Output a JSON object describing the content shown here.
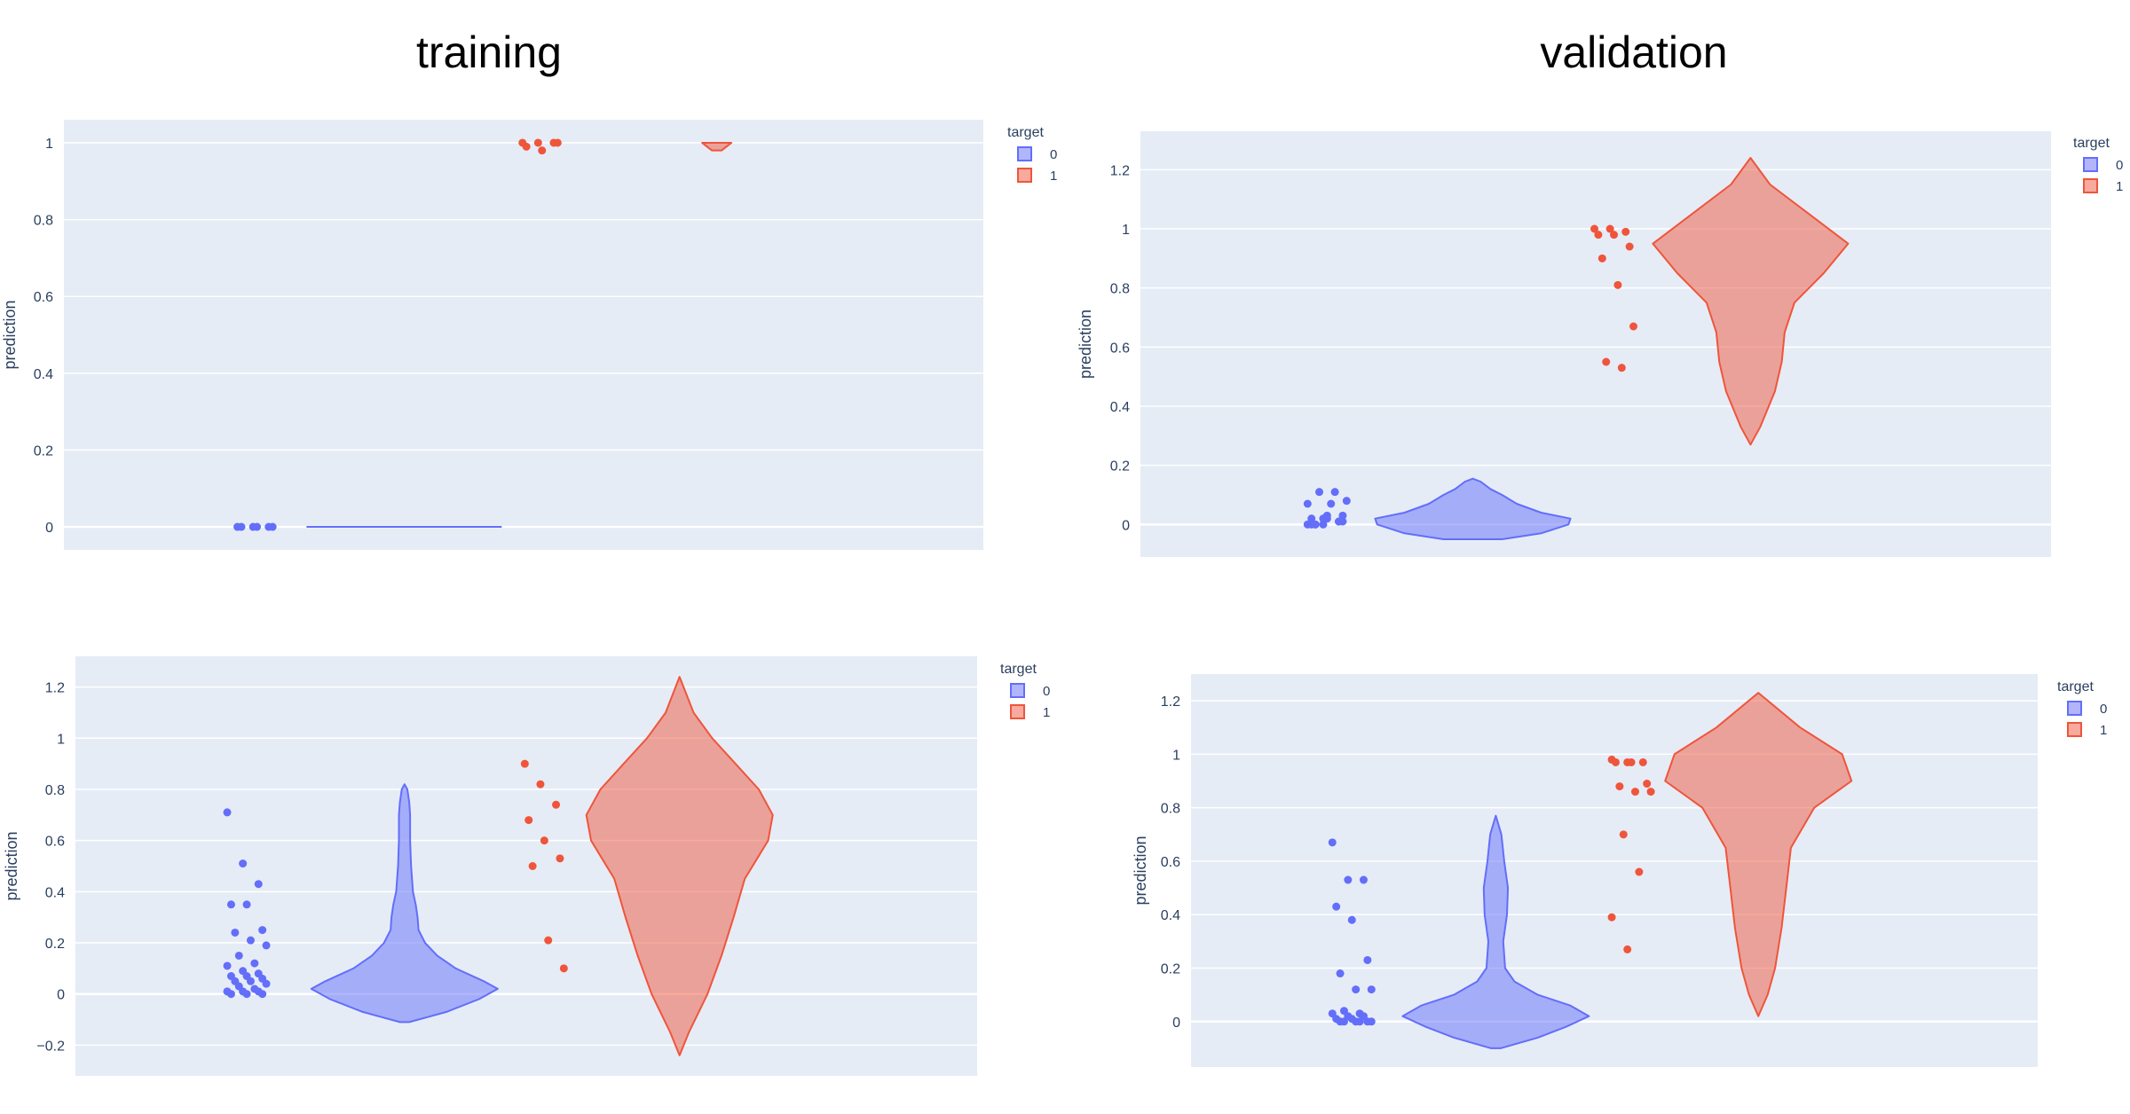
{
  "column_titles": {
    "training": "training",
    "validation": "validation"
  },
  "legend_title": "target",
  "colors": {
    "target_0": "#636efa",
    "target_1": "#ef553b",
    "plot_bg": "#e5ecf6",
    "grid": "#ffffff",
    "text": "#2a3f5f"
  },
  "chart_data": [
    {
      "type": "violin",
      "panel": "training-top",
      "ylabel": "prediction",
      "ylim": [
        -0.06,
        1.06
      ],
      "yticks": [
        0,
        0.2,
        0.4,
        0.6,
        0.8,
        1
      ],
      "ytick_labels": [
        "0",
        "0.2",
        "0.4",
        "0.6",
        "0.8",
        "1"
      ],
      "legend": [
        "0",
        "1"
      ],
      "series": [
        {
          "name": "0",
          "points": [
            0,
            0,
            0,
            0,
            0,
            0
          ],
          "violin": {
            "y": [
              0,
              0
            ],
            "w": [
              1,
              1
            ]
          }
        },
        {
          "name": "1",
          "points": [
            1,
            1,
            1,
            0.99,
            0.98,
            1
          ],
          "violin": {
            "y": [
              0.98,
              0.99,
              1.0
            ],
            "w": [
              0.05,
              0.1,
              0.15
            ]
          }
        }
      ]
    },
    {
      "type": "violin",
      "panel": "validation-top",
      "ylabel": "prediction",
      "ylim": [
        -0.11,
        1.33
      ],
      "yticks": [
        0,
        0.2,
        0.4,
        0.6,
        0.8,
        1,
        1.2
      ],
      "ytick_labels": [
        "0",
        "0.2",
        "0.4",
        "0.6",
        "0.8",
        "1",
        "1.2"
      ],
      "legend": [
        "0",
        "1"
      ],
      "series": [
        {
          "name": "0",
          "points": [
            0,
            0,
            0.01,
            0.02,
            0.03,
            0.01,
            0,
            0.07,
            0.08,
            0.11,
            0.11,
            0.07,
            0.02,
            0.01,
            0,
            0.02,
            0.03,
            0
          ],
          "violin": {
            "y": [
              -0.05,
              -0.03,
              0,
              0.02,
              0.04,
              0.07,
              0.1,
              0.12,
              0.145,
              0.155
            ],
            "w": [
              0.3,
              0.7,
              0.98,
              1.0,
              0.7,
              0.45,
              0.3,
              0.18,
              0.08,
              0
            ]
          }
        },
        {
          "name": "1",
          "points": [
            1,
            1,
            0.99,
            0.98,
            0.98,
            0.94,
            0.9,
            0.81,
            0.67,
            0.55,
            0.53
          ],
          "violin": {
            "y": [
              0.27,
              0.33,
              0.45,
              0.55,
              0.65,
              0.75,
              0.85,
              0.95,
              1.05,
              1.15,
              1.24
            ],
            "w": [
              0,
              0.1,
              0.25,
              0.32,
              0.35,
              0.45,
              0.75,
              1.0,
              0.6,
              0.2,
              0
            ]
          }
        }
      ]
    },
    {
      "type": "violin",
      "panel": "training-bottom",
      "ylabel": "prediction",
      "ylim": [
        -0.32,
        1.32
      ],
      "yticks": [
        -0.2,
        0,
        0.2,
        0.4,
        0.6,
        0.8,
        1,
        1.2
      ],
      "ytick_labels": [
        "−0.2",
        "0",
        "0.2",
        "0.4",
        "0.6",
        "0.8",
        "1",
        "1.2"
      ],
      "legend": [
        "0",
        "1"
      ],
      "series": [
        {
          "name": "0",
          "points": [
            0.71,
            0.51,
            0.43,
            0.35,
            0.35,
            0.25,
            0.24,
            0.21,
            0.19,
            0.15,
            0.12,
            0.11,
            0.09,
            0.08,
            0.07,
            0.07,
            0.06,
            0.05,
            0.05,
            0.04,
            0.03,
            0.02,
            0.01,
            0.01,
            0.01,
            0,
            0,
            0
          ],
          "violin": {
            "y": [
              -0.11,
              -0.07,
              -0.02,
              0.02,
              0.05,
              0.1,
              0.15,
              0.2,
              0.25,
              0.3,
              0.35,
              0.4,
              0.5,
              0.6,
              0.7,
              0.75,
              0.8,
              0.82
            ],
            "w": [
              0.05,
              0.45,
              0.8,
              1.0,
              0.85,
              0.55,
              0.35,
              0.22,
              0.15,
              0.14,
              0.12,
              0.09,
              0.07,
              0.06,
              0.06,
              0.05,
              0.03,
              0
            ]
          }
        },
        {
          "name": "1",
          "points": [
            0.9,
            0.82,
            0.74,
            0.68,
            0.6,
            0.53,
            0.5,
            0.21,
            0.1
          ],
          "violin": {
            "y": [
              -0.24,
              -0.15,
              0,
              0.15,
              0.3,
              0.45,
              0.6,
              0.7,
              0.8,
              0.9,
              1.0,
              1.1,
              1.24
            ],
            "w": [
              0,
              0.1,
              0.3,
              0.45,
              0.58,
              0.7,
              0.95,
              1.0,
              0.85,
              0.6,
              0.35,
              0.15,
              0
            ]
          }
        }
      ]
    },
    {
      "type": "violin",
      "panel": "validation-bottom",
      "ylabel": "prediction",
      "ylim": [
        -0.17,
        1.3
      ],
      "yticks": [
        0,
        0.2,
        0.4,
        0.6,
        0.8,
        1,
        1.2
      ],
      "ytick_labels": [
        "0",
        "0.2",
        "0.4",
        "0.6",
        "0.8",
        "1",
        "1.2"
      ],
      "legend": [
        "0",
        "1"
      ],
      "series": [
        {
          "name": "0",
          "points": [
            0.67,
            0.53,
            0.53,
            0.43,
            0.38,
            0.23,
            0.18,
            0.12,
            0.12,
            0.04,
            0.03,
            0.03,
            0.02,
            0.02,
            0.01,
            0.01,
            0,
            0,
            0,
            0,
            0,
            0
          ],
          "violin": {
            "y": [
              -0.1,
              -0.06,
              -0.02,
              0.02,
              0.06,
              0.1,
              0.15,
              0.2,
              0.3,
              0.4,
              0.5,
              0.6,
              0.7,
              0.77
            ],
            "w": [
              0.05,
              0.45,
              0.75,
              1.0,
              0.8,
              0.45,
              0.2,
              0.1,
              0.08,
              0.12,
              0.13,
              0.09,
              0.06,
              0
            ]
          }
        },
        {
          "name": "1",
          "points": [
            0.98,
            0.97,
            0.97,
            0.97,
            0.97,
            0.89,
            0.88,
            0.86,
            0.86,
            0.7,
            0.56,
            0.39,
            0.27
          ],
          "violin": {
            "y": [
              0.02,
              0.1,
              0.2,
              0.35,
              0.5,
              0.65,
              0.8,
              0.9,
              1.0,
              1.1,
              1.23
            ],
            "w": [
              0,
              0.1,
              0.18,
              0.25,
              0.3,
              0.35,
              0.6,
              1.0,
              0.9,
              0.45,
              0
            ]
          }
        }
      ]
    }
  ]
}
